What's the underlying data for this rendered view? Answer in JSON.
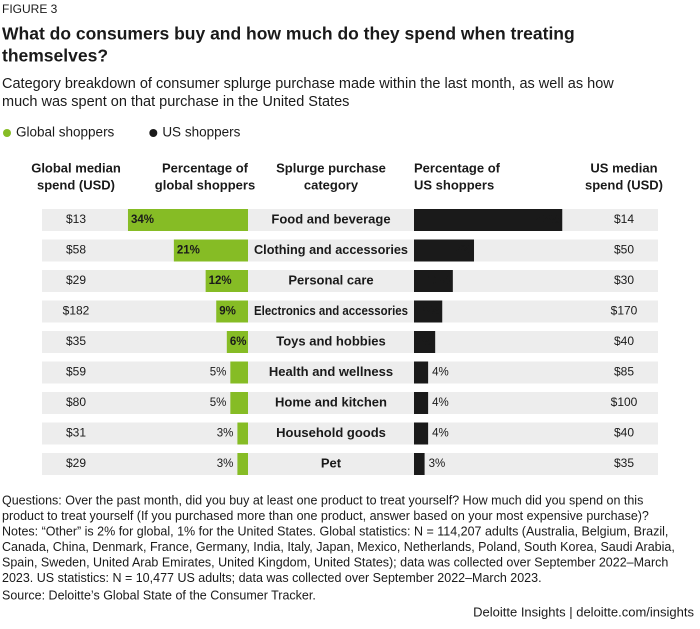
{
  "chart_data": {
    "type": "butterfly-bar",
    "figure_label": "FIGURE 3",
    "title": [
      "What do consumers buy and how much do they spend when treating",
      "themselves?"
    ],
    "subtitle": [
      "Category breakdown of consumer splurge purchase made within the last month, as well as how",
      "much was spent on that purchase in the United States"
    ],
    "column_headers": {
      "global_spend": [
        "Global median",
        "spend (USD)"
      ],
      "global_pct": [
        "Percentage of",
        "global shoppers"
      ],
      "category": [
        "Splurge purchase",
        "category"
      ],
      "us_pct": [
        "Percentage of",
        "US shoppers"
      ],
      "us_spend": [
        "US median",
        "spend (USD)"
      ]
    },
    "categories": [
      "Food and beverage",
      "Clothing and accessories",
      "Personal care",
      "Electronics and accessories",
      "Toys and hobbies",
      "Health and wellness",
      "Home and kitchen",
      "Household goods",
      "Pet"
    ],
    "global_median_spend": [
      "$13",
      "$58",
      "$29",
      "$182",
      "$35",
      "$59",
      "$80",
      "$31",
      "$29"
    ],
    "us_median_spend": [
      "$14",
      "$50",
      "$30",
      "$170",
      "$40",
      "$85",
      "$100",
      "$40",
      "$35"
    ],
    "series": [
      {
        "name": "Global shoppers",
        "color": "#86bc25",
        "values": [
          34,
          21,
          12,
          9,
          6,
          5,
          5,
          3,
          3
        ],
        "value_labels": [
          "34%",
          "21%",
          "12%",
          "9%",
          "6%",
          "5%",
          "5%",
          "3%",
          "3%"
        ]
      },
      {
        "name": "US shoppers",
        "color": "#1a1a1a",
        "values": [
          42,
          17,
          11,
          8,
          6,
          4,
          4,
          4,
          3
        ],
        "value_labels": [
          "42%",
          "17%",
          "11%",
          "8%",
          "6%",
          "4%",
          "4%",
          "4%",
          "3%"
        ]
      }
    ],
    "notes": [
      "Questions: Over the past month, did you buy at least one product to treat yourself? How much did you spend on this",
      "product to treat yourself (If you purchased more than one product, answer based on your most expensive purchase)?",
      "Notes: “Other” is 2% for global, 1% for the United States. Global statistics: N = 114,207 adults (Australia, Belgium, Brazil,",
      "Canada, China, Denmark, France, Germany, India, Italy, Japan, Mexico, Netherlands, Poland, South Korea, Saudi Arabia,",
      "Spain, Sweden, United Arab Emirates, United Kingdom, United States); data was collected over September 2022–March",
      "2023. US statistics: N = 10,477 US adults; data was collected over September 2022–March 2023."
    ],
    "source": "Source: Deloitte’s Global State of the Consumer Tracker.",
    "credit": "Deloitte Insights | deloitte.com/insights"
  }
}
